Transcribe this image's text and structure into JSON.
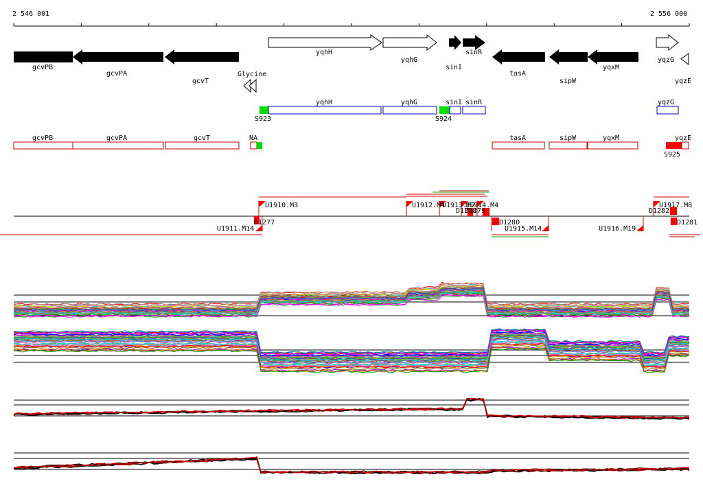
{
  "coordinates": {
    "start": "2 546 001",
    "end": "2 556 000"
  },
  "genes": [
    {
      "name": "gcvPB",
      "strand": "-",
      "fill": "black"
    },
    {
      "name": "gcvPA",
      "strand": "-",
      "fill": "black"
    },
    {
      "name": "gcvT",
      "strand": "-",
      "fill": "black"
    },
    {
      "name": "yqhH",
      "strand": "+",
      "fill": "white"
    },
    {
      "name": "yqhG",
      "strand": "+",
      "fill": "white"
    },
    {
      "name": "sinI",
      "strand": "+",
      "fill": "black"
    },
    {
      "name": "sinR",
      "strand": "+",
      "fill": "black"
    },
    {
      "name": "tasA",
      "strand": "-",
      "fill": "black"
    },
    {
      "name": "sipW",
      "strand": "-",
      "fill": "black"
    },
    {
      "name": "yqxM",
      "strand": "-",
      "fill": "black"
    },
    {
      "name": "yqzG",
      "strand": "+",
      "fill": "white"
    },
    {
      "name": "yqzE",
      "strand": "-",
      "fill": "white"
    }
  ],
  "riboswitch": {
    "name": "Glycine"
  },
  "plus_transcripts": [
    {
      "label": "yqhH"
    },
    {
      "label": "yqhG"
    },
    {
      "label": "sinI"
    },
    {
      "label": "sinR"
    },
    {
      "label": "yqzG"
    }
  ],
  "plus_sites": [
    {
      "label": "S923"
    },
    {
      "label": "S924"
    }
  ],
  "minus_transcripts": [
    {
      "label": "gcvPB"
    },
    {
      "label": "gcvPA"
    },
    {
      "label": "gcvT"
    },
    {
      "label": "NA"
    },
    {
      "label": "tasA"
    },
    {
      "label": "sipW"
    },
    {
      "label": "yqxM"
    },
    {
      "label": "yqzE"
    }
  ],
  "minus_sites": [
    {
      "label": "S925"
    }
  ],
  "segments": [
    {
      "label": "U1910.M3"
    },
    {
      "label": "U1912.M4"
    },
    {
      "label": "U1913.M7"
    },
    {
      "label": "U1914.M4"
    },
    {
      "label": "U1917.M8"
    },
    {
      "label": "U1911.M14"
    },
    {
      "label": "U1915.M14"
    },
    {
      "label": "U1916.M19"
    }
  ],
  "breakpoints": [
    {
      "label": "D1277"
    },
    {
      "label": "D1278"
    },
    {
      "label": "D1279"
    },
    {
      "label": "D1280"
    },
    {
      "label": "D1282"
    },
    {
      "label": "D1281"
    }
  ],
  "colors": {
    "genes_fill": "#000000",
    "plus_track": "#0000cc",
    "minus_track": "#cc0000",
    "site_green": "#00dd00",
    "site_red": "#ff0000"
  }
}
